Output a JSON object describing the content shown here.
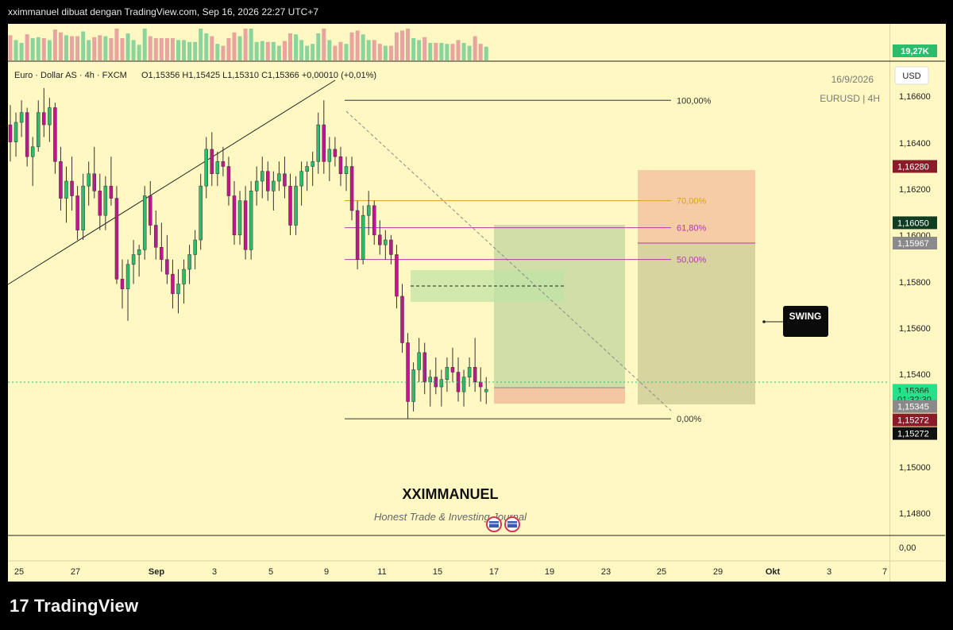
{
  "topbar": {
    "text": "xximmanuel dibuat dengan TradingView.com, Sep 16, 2026 22:27 UTC+7"
  },
  "legend": {
    "symbol_desc": "Euro · Dollar AS · 4h · FXCM",
    "ohlc": "O1,15356  H1,15425  L1,15310  C1,15366  +0,00010 (+0,01%)"
  },
  "watermark": {
    "date": "16/9/2026",
    "symbol": "EURUSD | 4H"
  },
  "currency": "USD",
  "volume_label": "19,27K",
  "swing_label": "SWING",
  "author": {
    "name": "XXIMMANUEL",
    "tagline": "Honest Trade & Investing Journal"
  },
  "brand": "TradingView",
  "colors": {
    "background": "#fff8c3",
    "bull": "#2bbd6c",
    "bear": "#c2168f",
    "green_zone": "#a9c98f",
    "red_zone": "#f1b99a"
  },
  "chart_data": {
    "type": "candlestick",
    "timeframe": "4h",
    "x_ticks": [
      "25",
      "27",
      "Sep",
      "3",
      "5",
      "9",
      "11",
      "15",
      "17",
      "19",
      "23",
      "25",
      "29",
      "Okt",
      "3",
      "7"
    ],
    "y_ticks": [
      "1,16600",
      "1,16400",
      "1,16200",
      "1,16000",
      "1,15800",
      "1,15600",
      "1,15400",
      "1,15000",
      "1,14800",
      "0,00"
    ],
    "ylim": [
      1.1478,
      1.167
    ],
    "fibonacci": [
      {
        "level": "100,00%",
        "price": 1.1655,
        "color": "#333333"
      },
      {
        "level": "70,00%",
        "price": 1.1614,
        "color": "#d9a21a"
      },
      {
        "level": "61,80%",
        "price": 1.1603,
        "color": "#b03aa8"
      },
      {
        "level": "50,00%",
        "price": 1.159,
        "color": "#b03aa8"
      },
      {
        "level": "0,00%",
        "price": 1.1525,
        "color": "#333333"
      }
    ],
    "price_badges": [
      {
        "label": "1,16280",
        "price": 1.1628,
        "bg": "#8a1c2a",
        "fg": "#ffffff"
      },
      {
        "label": "1,16050",
        "price": 1.1605,
        "bg": "#0f3d22",
        "fg": "#ffffff"
      },
      {
        "label": "1,15967",
        "price": 1.15967,
        "bg": "#8a8a8a",
        "fg": "#ffffff"
      },
      {
        "label": "1,15366",
        "price": 1.15366,
        "bg": "#27e08a",
        "fg": "#0b3b22"
      },
      {
        "label": "01:32:30",
        "price": 1.1533,
        "bg": "#27e08a",
        "fg": "#0b3b22"
      },
      {
        "label": "1,15345",
        "price": 1.153,
        "bg": "#8a8a8a",
        "fg": "#ffffff"
      },
      {
        "label": "1,15272",
        "price": 1.15245,
        "bg": "#8a1c2a",
        "fg": "#ffffff"
      },
      {
        "label": "1,15272",
        "price": 1.1519,
        "bg": "#111111",
        "fg": "#ffffff"
      }
    ],
    "candles": [
      [
        1.1645,
        1.1653,
        1.163,
        1.1638
      ],
      [
        1.1638,
        1.165,
        1.1632,
        1.1646
      ],
      [
        1.1646,
        1.1655,
        1.164,
        1.165
      ],
      [
        1.165,
        1.1652,
        1.1628,
        1.1632
      ],
      [
        1.1632,
        1.164,
        1.162,
        1.1636
      ],
      [
        1.1636,
        1.1655,
        1.1634,
        1.165
      ],
      [
        1.165,
        1.166,
        1.164,
        1.1645
      ],
      [
        1.1645,
        1.1656,
        1.1638,
        1.1652
      ],
      [
        1.1652,
        1.1654,
        1.1625,
        1.163
      ],
      [
        1.163,
        1.1636,
        1.161,
        1.1615
      ],
      [
        1.1615,
        1.1628,
        1.1605,
        1.1622
      ],
      [
        1.1622,
        1.1632,
        1.161,
        1.1616
      ],
      [
        1.1616,
        1.162,
        1.1598,
        1.1602
      ],
      [
        1.1602,
        1.1625,
        1.1598,
        1.162
      ],
      [
        1.162,
        1.163,
        1.1612,
        1.1625
      ],
      [
        1.1625,
        1.1636,
        1.1615,
        1.1618
      ],
      [
        1.1618,
        1.1625,
        1.1602,
        1.1608
      ],
      [
        1.1608,
        1.1624,
        1.1602,
        1.162
      ],
      [
        1.162,
        1.1632,
        1.1612,
        1.1615
      ],
      [
        1.1615,
        1.162,
        1.158,
        1.1582
      ],
      [
        1.1582,
        1.159,
        1.157,
        1.1578
      ],
      [
        1.1578,
        1.159,
        1.1565,
        1.1588
      ],
      [
        1.1588,
        1.1598,
        1.158,
        1.1592
      ],
      [
        1.1592,
        1.1596,
        1.1583,
        1.1594
      ],
      [
        1.1594,
        1.162,
        1.159,
        1.1616
      ],
      [
        1.1616,
        1.1622,
        1.16,
        1.1604
      ],
      [
        1.1604,
        1.161,
        1.159,
        1.1595
      ],
      [
        1.1595,
        1.1605,
        1.1585,
        1.159
      ],
      [
        1.159,
        1.16,
        1.158,
        1.1584
      ],
      [
        1.1584,
        1.159,
        1.157,
        1.1576
      ],
      [
        1.1576,
        1.1586,
        1.1568,
        1.158
      ],
      [
        1.158,
        1.159,
        1.1572,
        1.1586
      ],
      [
        1.1586,
        1.1596,
        1.158,
        1.1592
      ],
      [
        1.1592,
        1.1602,
        1.1586,
        1.1598
      ],
      [
        1.1598,
        1.1625,
        1.1594,
        1.162
      ],
      [
        1.162,
        1.164,
        1.1615,
        1.1635
      ],
      [
        1.1635,
        1.1642,
        1.162,
        1.1625
      ],
      [
        1.1625,
        1.1634,
        1.162,
        1.163
      ],
      [
        1.163,
        1.1636,
        1.1624,
        1.1628
      ],
      [
        1.1628,
        1.1632,
        1.1612,
        1.1616
      ],
      [
        1.1616,
        1.1622,
        1.1596,
        1.16
      ],
      [
        1.16,
        1.1618,
        1.1596,
        1.1614
      ],
      [
        1.1614,
        1.162,
        1.159,
        1.1594
      ],
      [
        1.1594,
        1.1622,
        1.159,
        1.1618
      ],
      [
        1.1618,
        1.1628,
        1.1612,
        1.1622
      ],
      [
        1.1622,
        1.1632,
        1.1615,
        1.1626
      ],
      [
        1.1626,
        1.163,
        1.1614,
        1.1618
      ],
      [
        1.1618,
        1.1626,
        1.161,
        1.1622
      ],
      [
        1.1622,
        1.163,
        1.1618,
        1.1625
      ],
      [
        1.1625,
        1.1632,
        1.1615,
        1.162
      ],
      [
        1.162,
        1.1625,
        1.16,
        1.1604
      ],
      [
        1.1604,
        1.1624,
        1.16,
        1.162
      ],
      [
        1.162,
        1.163,
        1.1612,
        1.1626
      ],
      [
        1.1626,
        1.163,
        1.1618,
        1.1628
      ],
      [
        1.1628,
        1.1634,
        1.162,
        1.163
      ],
      [
        1.163,
        1.165,
        1.1625,
        1.1645
      ],
      [
        1.1645,
        1.1655,
        1.1625,
        1.163
      ],
      [
        1.163,
        1.164,
        1.1622,
        1.1635
      ],
      [
        1.1635,
        1.164,
        1.1628,
        1.1632
      ],
      [
        1.1632,
        1.1636,
        1.162,
        1.1625
      ],
      [
        1.1625,
        1.1632,
        1.1618,
        1.1628
      ],
      [
        1.1628,
        1.1632,
        1.1606,
        1.161
      ],
      [
        1.161,
        1.1614,
        1.1586,
        1.159
      ],
      [
        1.159,
        1.1612,
        1.1588,
        1.1608
      ],
      [
        1.1608,
        1.1618,
        1.16,
        1.1612
      ],
      [
        1.1612,
        1.1614,
        1.1596,
        1.16
      ],
      [
        1.16,
        1.1606,
        1.1592,
        1.1596
      ],
      [
        1.1596,
        1.1602,
        1.159,
        1.1598
      ],
      [
        1.1598,
        1.16,
        1.1588,
        1.1592
      ],
      [
        1.1592,
        1.1596,
        1.157,
        1.1575
      ],
      [
        1.1575,
        1.158,
        1.1552,
        1.1556
      ],
      [
        1.1556,
        1.156,
        1.1525,
        1.1532
      ],
      [
        1.1532,
        1.1548,
        1.1528,
        1.1545
      ],
      [
        1.1545,
        1.1558,
        1.154,
        1.1552
      ],
      [
        1.1552,
        1.1556,
        1.1535,
        1.154
      ],
      [
        1.154,
        1.1545,
        1.153,
        1.1542
      ],
      [
        1.1542,
        1.155,
        1.1535,
        1.1538
      ],
      [
        1.1538,
        1.1545,
        1.153,
        1.1541
      ],
      [
        1.1541,
        1.155,
        1.1536,
        1.1546
      ],
      [
        1.1546,
        1.1554,
        1.154,
        1.1544
      ],
      [
        1.1544,
        1.155,
        1.1532,
        1.1536
      ],
      [
        1.1536,
        1.1545,
        1.153,
        1.1542
      ],
      [
        1.1542,
        1.155,
        1.1538,
        1.1546
      ],
      [
        1.1546,
        1.1558,
        1.1536,
        1.154
      ],
      [
        1.154,
        1.1546,
        1.1532,
        1.1538
      ],
      [
        1.1536,
        1.1542,
        1.1531,
        1.1537
      ]
    ]
  }
}
